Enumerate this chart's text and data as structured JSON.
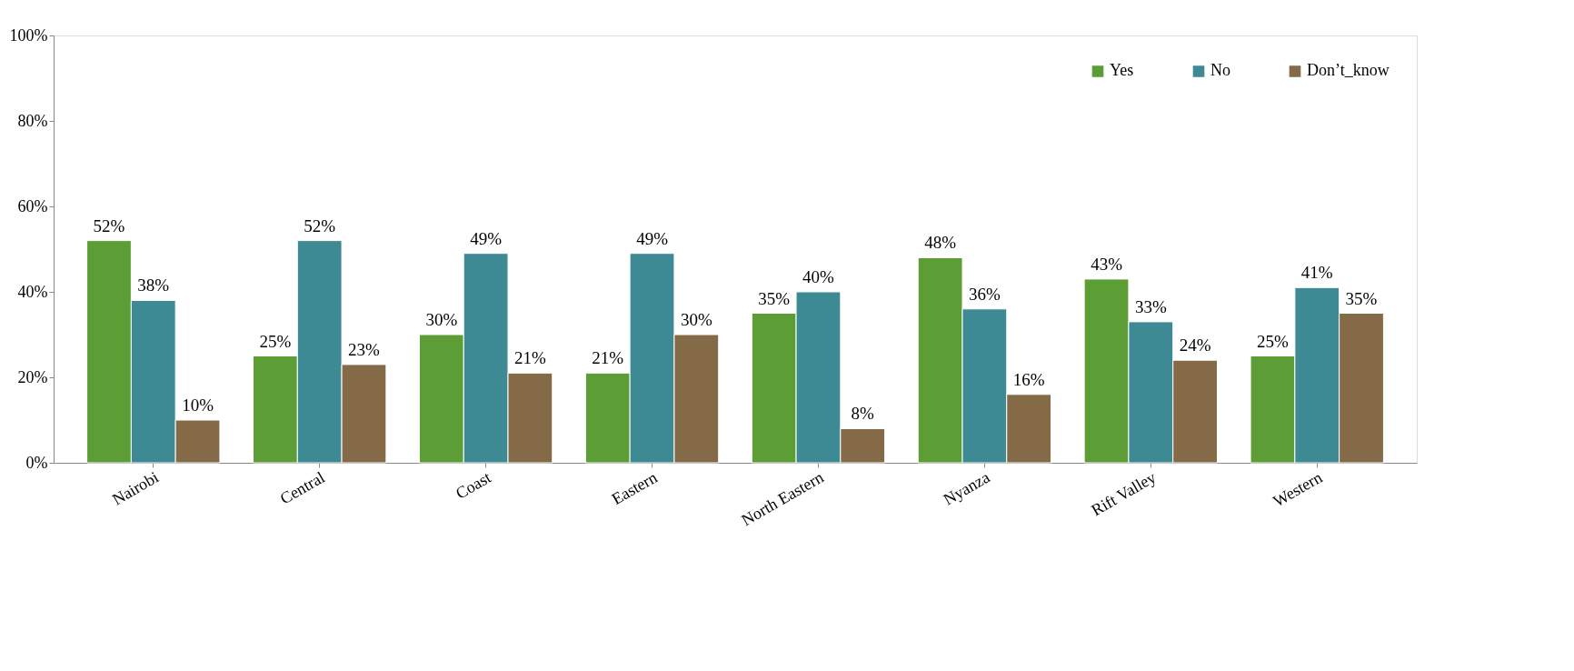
{
  "chart_data": {
    "type": "bar",
    "categories": [
      "Nairobi",
      "Central",
      "Coast",
      "Eastern",
      "North Eastern",
      "Nyanza",
      "Rift Valley",
      "Western"
    ],
    "series": [
      {
        "name": "Yes",
        "color": "#5c9e35",
        "values": [
          52,
          25,
          30,
          21,
          35,
          48,
          43,
          25
        ],
        "value_labels": [
          "52%",
          "25%",
          "30%",
          "21%",
          "35%",
          "48%",
          "43%",
          "25%"
        ]
      },
      {
        "name": "No",
        "color": "#3d8a94",
        "values": [
          38,
          52,
          49,
          49,
          40,
          36,
          33,
          41
        ],
        "value_labels": [
          "38%",
          "52%",
          "49%",
          "49%",
          "40%",
          "36%",
          "33%",
          "41%"
        ]
      },
      {
        "name": "Don’t_know",
        "color": "#846a46",
        "values": [
          10,
          23,
          21,
          30,
          8,
          16,
          24,
          35
        ],
        "value_labels": [
          "10%",
          "23%",
          "21%",
          "30%",
          "8%",
          "16%",
          "24%",
          "35%"
        ]
      }
    ],
    "ylim": [
      0,
      100
    ],
    "yticks": [
      {
        "value": 0,
        "label": "0%"
      },
      {
        "value": 20,
        "label": "20%"
      },
      {
        "value": 40,
        "label": "40%"
      },
      {
        "value": 60,
        "label": "60%"
      },
      {
        "value": 80,
        "label": "80%"
      },
      {
        "value": 100,
        "label": "100%"
      }
    ],
    "grid": false,
    "legend": "top right"
  }
}
